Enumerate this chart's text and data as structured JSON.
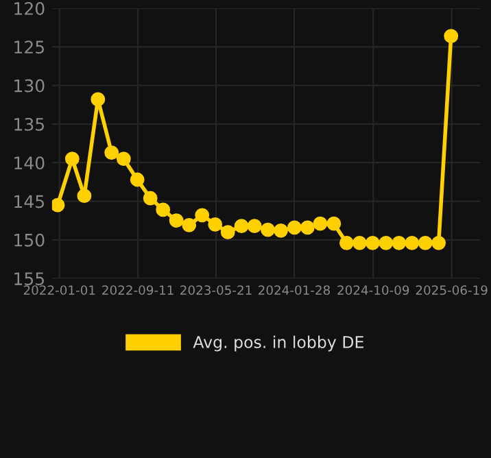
{
  "chart_data": {
    "type": "line",
    "x": [
      "2021-12-26",
      "2022-02-11",
      "2022-03-22",
      "2022-05-05",
      "2022-06-18",
      "2022-07-27",
      "2022-09-09",
      "2022-10-21",
      "2022-12-01",
      "2023-01-13",
      "2023-02-23",
      "2023-04-06",
      "2023-05-18",
      "2023-06-28",
      "2023-08-11",
      "2023-09-22",
      "2023-11-04",
      "2023-12-16",
      "2024-01-29",
      "2024-03-11",
      "2024-04-21",
      "2024-06-04",
      "2024-07-15",
      "2024-08-26",
      "2024-10-07",
      "2024-11-19",
      "2024-12-31",
      "2025-02-11",
      "2025-03-26",
      "2025-05-08",
      "2025-06-17"
    ],
    "series": [
      {
        "name": "Avg. pos. in lobby DE",
        "color": "#ffd000",
        "values": [
          145.5,
          139.5,
          144.3,
          131.8,
          138.7,
          139.5,
          142.2,
          144.6,
          146.1,
          147.5,
          148.1,
          146.8,
          148.0,
          149.0,
          148.2,
          148.2,
          148.7,
          148.8,
          148.4,
          148.4,
          147.9,
          147.9,
          150.4,
          150.4,
          150.4,
          150.4,
          150.4,
          150.4,
          150.4,
          150.4,
          123.6
        ]
      }
    ],
    "ylim": [
      155,
      120
    ],
    "yticks": [
      120,
      125,
      130,
      135,
      140,
      145,
      150,
      155
    ],
    "xlim": [
      "2021-12-08",
      "2025-09-19"
    ],
    "xticks": [
      "2022-01-01",
      "2022-09-11",
      "2023-05-21",
      "2024-01-28",
      "2024-10-09",
      "2025-06-19"
    ],
    "grid": true,
    "legend": "bottom",
    "marker": "circle",
    "line_style": "solid"
  }
}
